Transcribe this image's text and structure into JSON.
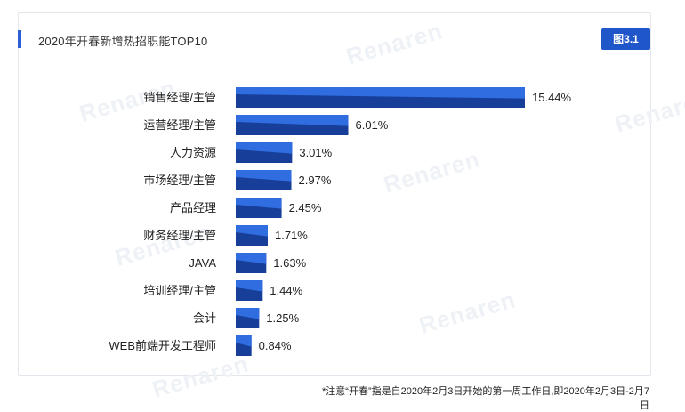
{
  "header": {
    "title": "2020年开春新增热招职能TOP10",
    "figure_badge": "图3.1"
  },
  "watermark": {
    "brand": "Renaren"
  },
  "footnote": "*注意“开春”指是自2020年2月3日开始的第一周工作日,即2020年2月3日-2月7日",
  "colors": {
    "bar_dark": "#173f9a",
    "bar_light": "#2f6de0",
    "accent": "#2a5fd6"
  },
  "chart_data": {
    "type": "bar",
    "orientation": "horizontal",
    "title": "2020年开春新增热招职能TOP10",
    "categories": [
      "销售经理/主管",
      "运营经理/主管",
      "人力资源",
      "市场经理/主管",
      "产品经理",
      "财务经理/主管",
      "JAVA",
      "培训经理/主管",
      "会计",
      "WEB前端开发工程师"
    ],
    "values": [
      15.44,
      6.01,
      3.01,
      2.97,
      2.45,
      1.71,
      1.63,
      1.44,
      1.25,
      0.84
    ],
    "value_labels": [
      "15.44%",
      "6.01%",
      "3.01%",
      "2.97%",
      "2.45%",
      "1.71%",
      "1.63%",
      "1.44%",
      "1.25%",
      "0.84%"
    ],
    "unit": "%",
    "xlim": [
      0,
      15.44
    ],
    "grid": false,
    "legend": "none"
  }
}
